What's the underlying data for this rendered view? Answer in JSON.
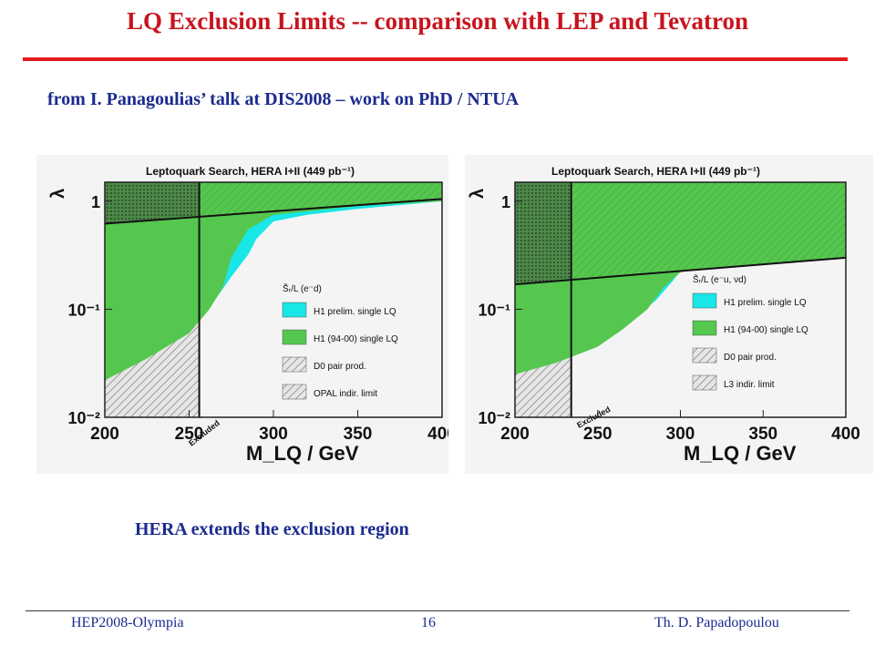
{
  "slide": {
    "title": "LQ Exclusion Limits -- comparison with LEP and Tevatron",
    "subtitle": "from I. Panagoulias’ talk at DIS2008 – work on PhD / NTUA",
    "conclusion": "HERA extends the exclusion region",
    "footer": {
      "left": "HEP2008-Olympia",
      "center": "16",
      "right": "Th. D. Papadopoulou"
    }
  },
  "colors": {
    "title": "#c8141e",
    "title_rule": "#e51a1a",
    "text_blue": "#1b2b8f",
    "h1_prelim_cyan": "#19e6e6",
    "h1_9400_green": "#55c74f",
    "hatch_gray": "#bdbdbd"
  },
  "chart_data": [
    {
      "type": "area",
      "title": "Leptoquark Search, HERA I+II (449 pb⁻¹)",
      "xlabel": "M_LQ / GeV",
      "ylabel": "λ",
      "xlim": [
        200,
        400
      ],
      "ylim": [
        0.01,
        1.5
      ],
      "yscale": "log",
      "x_ticks": [
        "200",
        "250",
        "300",
        "350",
        "400"
      ],
      "y_ticks": [
        "1",
        "10⁻¹",
        "10⁻²"
      ],
      "legend_title": "S̃ᵣ/L (e⁻d)",
      "legend": [
        "H1 prelim. single LQ",
        "H1 (94-00) single LQ",
        "D0 pair prod.",
        "OPAL indir. limit"
      ],
      "annotation": "Excluded",
      "d0_pair_limit_mass": 256,
      "h1_prelim_limit": {
        "x": [
          200,
          225,
          250,
          265,
          275,
          285,
          290,
          300,
          320,
          350,
          400
        ],
        "y": [
          0.03,
          0.05,
          0.08,
          0.12,
          0.2,
          0.32,
          0.45,
          0.65,
          0.75,
          0.85,
          1.0
        ]
      },
      "h1_9400_limit": {
        "x": [
          200,
          225,
          250,
          262,
          270,
          275,
          285,
          300,
          350,
          400
        ],
        "y": [
          0.022,
          0.035,
          0.06,
          0.1,
          0.16,
          0.3,
          0.55,
          0.75,
          0.9,
          1.0
        ]
      },
      "indirect_limit": {
        "x": [
          200,
          400
        ],
        "y": [
          0.62,
          1.05
        ]
      }
    },
    {
      "type": "area",
      "title": "Leptoquark Search, HERA I+II (449 pb⁻¹)",
      "xlabel": "M_LQ / GeV",
      "ylabel": "λ",
      "xlim": [
        200,
        400
      ],
      "ylim": [
        0.01,
        1.5
      ],
      "yscale": "log",
      "x_ticks": [
        "200",
        "250",
        "300",
        "350",
        "400"
      ],
      "y_ticks": [
        "1",
        "10⁻¹",
        "10⁻²"
      ],
      "legend_title": "S̃ᵣ/L (e⁻u, νd)",
      "legend": [
        "H1 prelim. single LQ",
        "H1 (94-00) single LQ",
        "D0 pair prod.",
        "L3 indir. limit"
      ],
      "annotation": "Excluded",
      "d0_pair_limit_mass": 234,
      "h1_prelim_limit": {
        "x": [
          200,
          225,
          250,
          270,
          285,
          295,
          305,
          315,
          350,
          400
        ],
        "y": [
          0.03,
          0.04,
          0.06,
          0.08,
          0.12,
          0.18,
          0.28,
          0.35,
          0.42,
          0.5
        ]
      },
      "h1_9400_limit": {
        "x": [
          200,
          225,
          250,
          265,
          280,
          290,
          300,
          350,
          400
        ],
        "y": [
          0.025,
          0.032,
          0.045,
          0.065,
          0.1,
          0.16,
          0.22,
          0.32,
          0.4
        ]
      },
      "indirect_limit": {
        "x": [
          200,
          400
        ],
        "y": [
          0.17,
          0.3
        ]
      }
    }
  ]
}
